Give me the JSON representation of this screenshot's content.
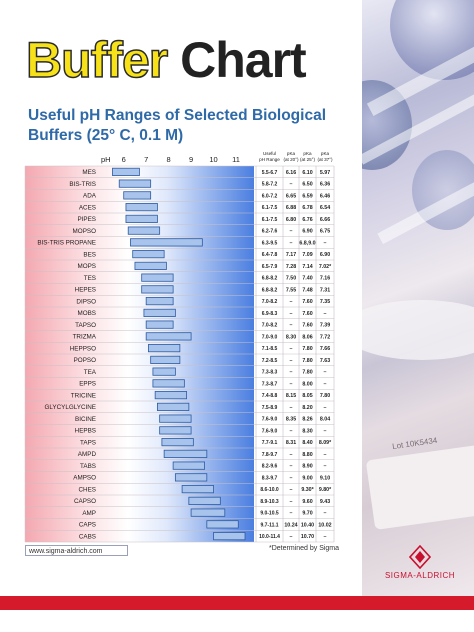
{
  "header": {
    "title_word1": "Buffer",
    "title_word2": "Chart",
    "subtitle": "Useful pH Ranges of Selected Biological Buffers (25° C, 0.1 M)"
  },
  "colors": {
    "title_yellow": "#f7e21a",
    "subtitle_blue": "#2f6aa8",
    "acid_red": "#f4a8b0",
    "base_blue": "#4a7ee0",
    "bar_fill": "#a9c4ec",
    "bar_stroke": "#2c5aa0",
    "brand_red": "#d51a2b"
  },
  "chart_data": {
    "type": "table",
    "x_axis_label": "pH",
    "x_ticks": [
      6,
      7,
      8,
      9,
      10,
      11
    ],
    "xlim": [
      4.9,
      11.8
    ],
    "column_headers": {
      "range": [
        "Useful",
        "pH Range"
      ],
      "pka20": [
        "pKa",
        "(at 20°)"
      ],
      "pka25": [
        "pKa",
        "(at 25°)"
      ],
      "pka37": [
        "pKa",
        "(at 37°)"
      ]
    },
    "rows": [
      {
        "name": "MES",
        "range": "5.5-6.7",
        "low": 5.5,
        "high": 6.7,
        "pka20": "6.16",
        "pka25": "6.10",
        "pka37": "5.97"
      },
      {
        "name": "BIS-TRIS",
        "range": "5.8-7.2",
        "low": 5.8,
        "high": 7.2,
        "pka20": "–",
        "pka25": "6.50",
        "pka37": "6.36"
      },
      {
        "name": "ADA",
        "range": "6.0-7.2",
        "low": 6.0,
        "high": 7.2,
        "pka20": "6.65",
        "pka25": "6.59",
        "pka37": "6.46"
      },
      {
        "name": "ACES",
        "range": "6.1-7.5",
        "low": 6.1,
        "high": 7.5,
        "pka20": "6.88",
        "pka25": "6.78",
        "pka37": "6.54"
      },
      {
        "name": "PIPES",
        "range": "6.1-7.5",
        "low": 6.1,
        "high": 7.5,
        "pka20": "6.80",
        "pka25": "6.76",
        "pka37": "6.66"
      },
      {
        "name": "MOPSO",
        "range": "6.2-7.6",
        "low": 6.2,
        "high": 7.6,
        "pka20": "–",
        "pka25": "6.90",
        "pka37": "6.75"
      },
      {
        "name": "BIS-TRIS PROPANE",
        "range": "6.3-9.5",
        "low": 6.3,
        "high": 9.5,
        "pka20": "–",
        "pka25": "6.8,9.0",
        "pka37": "–"
      },
      {
        "name": "BES",
        "range": "6.4-7.8",
        "low": 6.4,
        "high": 7.8,
        "pka20": "7.17",
        "pka25": "7.09",
        "pka37": "6.90"
      },
      {
        "name": "MOPS",
        "range": "6.5-7.9",
        "low": 6.5,
        "high": 7.9,
        "pka20": "7.28",
        "pka25": "7.14",
        "pka37": "7.02*"
      },
      {
        "name": "TES",
        "range": "6.8-8.2",
        "low": 6.8,
        "high": 8.2,
        "pka20": "7.50",
        "pka25": "7.40",
        "pka37": "7.16"
      },
      {
        "name": "HEPES",
        "range": "6.8-8.2",
        "low": 6.8,
        "high": 8.2,
        "pka20": "7.55",
        "pka25": "7.48",
        "pka37": "7.31"
      },
      {
        "name": "DIPSO",
        "range": "7.0-8.2",
        "low": 7.0,
        "high": 8.2,
        "pka20": "–",
        "pka25": "7.60",
        "pka37": "7.35"
      },
      {
        "name": "MOBS",
        "range": "6.9-8.3",
        "low": 6.9,
        "high": 8.3,
        "pka20": "–",
        "pka25": "7.60",
        "pka37": "–"
      },
      {
        "name": "TAPSO",
        "range": "7.0-8.2",
        "low": 7.0,
        "high": 8.2,
        "pka20": "–",
        "pka25": "7.60",
        "pka37": "7.39"
      },
      {
        "name": "TRIZMA",
        "range": "7.0-9.0",
        "low": 7.0,
        "high": 9.0,
        "pka20": "8.30",
        "pka25": "8.06",
        "pka37": "7.72"
      },
      {
        "name": "HEPPSO",
        "range": "7.1-8.5",
        "low": 7.1,
        "high": 8.5,
        "pka20": "–",
        "pka25": "7.80",
        "pka37": "7.66"
      },
      {
        "name": "POPSO",
        "range": "7.2-8.5",
        "low": 7.2,
        "high": 8.5,
        "pka20": "–",
        "pka25": "7.80",
        "pka37": "7.63"
      },
      {
        "name": "TEA",
        "range": "7.3-8.3",
        "low": 7.3,
        "high": 8.3,
        "pka20": "–",
        "pka25": "7.80",
        "pka37": "–"
      },
      {
        "name": "EPPS",
        "range": "7.3-8.7",
        "low": 7.3,
        "high": 8.7,
        "pka20": "–",
        "pka25": "8.00",
        "pka37": "–"
      },
      {
        "name": "TRICINE",
        "range": "7.4-8.8",
        "low": 7.4,
        "high": 8.8,
        "pka20": "8.15",
        "pka25": "8.05",
        "pka37": "7.80"
      },
      {
        "name": "GLYCYLGLYCINE",
        "range": "7.5-8.9",
        "low": 7.5,
        "high": 8.9,
        "pka20": "–",
        "pka25": "8.20",
        "pka37": "–"
      },
      {
        "name": "BICINE",
        "range": "7.6-9.0",
        "low": 7.6,
        "high": 9.0,
        "pka20": "8.35",
        "pka25": "8.26",
        "pka37": "8.04"
      },
      {
        "name": "HEPBS",
        "range": "7.6-9.0",
        "low": 7.6,
        "high": 9.0,
        "pka20": "–",
        "pka25": "8.30",
        "pka37": "–"
      },
      {
        "name": "TAPS",
        "range": "7.7-9.1",
        "low": 7.7,
        "high": 9.1,
        "pka20": "8.31",
        "pka25": "8.40",
        "pka37": "8.09*"
      },
      {
        "name": "AMPD",
        "range": "7.8-9.7",
        "low": 7.8,
        "high": 9.7,
        "pka20": "–",
        "pka25": "8.80",
        "pka37": "–"
      },
      {
        "name": "TABS",
        "range": "8.2-9.6",
        "low": 8.2,
        "high": 9.6,
        "pka20": "–",
        "pka25": "8.90",
        "pka37": "–"
      },
      {
        "name": "AMPSO",
        "range": "8.3-9.7",
        "low": 8.3,
        "high": 9.7,
        "pka20": "–",
        "pka25": "9.00",
        "pka37": "9.10"
      },
      {
        "name": "CHES",
        "range": "8.6-10.0",
        "low": 8.6,
        "high": 10.0,
        "pka20": "–",
        "pka25": "9.30*",
        "pka37": "9.80*"
      },
      {
        "name": "CAPSO",
        "range": "8.9-10.3",
        "low": 8.9,
        "high": 10.3,
        "pka20": "–",
        "pka25": "9.60",
        "pka37": "9.43"
      },
      {
        "name": "AMP",
        "range": "9.0-10.5",
        "low": 9.0,
        "high": 10.5,
        "pka20": "–",
        "pka25": "9.70",
        "pka37": "–"
      },
      {
        "name": "CAPS",
        "range": "9.7-11.1",
        "low": 9.7,
        "high": 11.1,
        "pka20": "10.24",
        "pka25": "10.40",
        "pka37": "10.02"
      },
      {
        "name": "CABS",
        "range": "10.0-11.4",
        "low": 10.0,
        "high": 11.4,
        "pka20": "–",
        "pka25": "10.70",
        "pka37": "–"
      }
    ]
  },
  "footer": {
    "url": "www.sigma-aldrich.com",
    "note": "*Determined by Sigma",
    "brand": "SIGMA-ALDRICH"
  },
  "photo": {
    "lot_text": "Lot 10K5434"
  }
}
